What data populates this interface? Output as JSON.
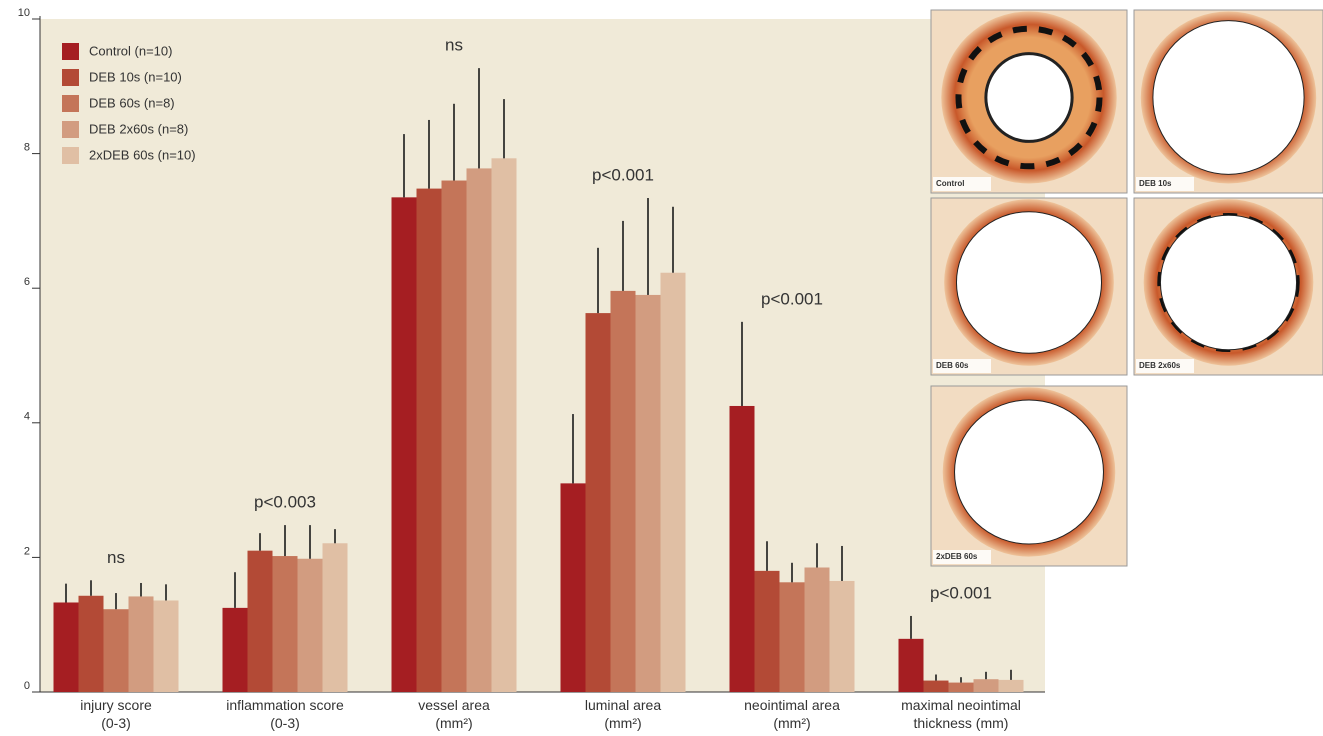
{
  "chart_data": {
    "type": "bar",
    "categories": [
      [
        "injury score",
        "(0-3)"
      ],
      [
        "inflammation score",
        "(0-3)"
      ],
      [
        "vessel area",
        "(mm²)"
      ],
      [
        "luminal area",
        "(mm²)"
      ],
      [
        "neointimal area",
        "(mm²)"
      ],
      [
        "maximal neointimal",
        "thickness (mm)"
      ]
    ],
    "group_labels": [
      "ns",
      "p<0.003",
      "ns",
      "p<0.001",
      "p<0.001",
      "p<0.001"
    ],
    "series": [
      {
        "name": "Control (n=10)",
        "color": "#a51e22",
        "values": [
          1.33,
          1.25,
          7.35,
          3.1,
          4.25,
          0.79
        ],
        "errors": [
          0.28,
          0.53,
          0.94,
          1.03,
          1.25,
          0.34
        ]
      },
      {
        "name": "DEB 10s (n=10)",
        "color": "#b34a36",
        "values": [
          1.43,
          2.1,
          7.48,
          5.63,
          1.8,
          0.17
        ],
        "errors": [
          0.23,
          0.26,
          1.02,
          0.97,
          0.44,
          0.09
        ]
      },
      {
        "name": "DEB 60s (n=8)",
        "color": "#c47559",
        "values": [
          1.23,
          2.02,
          7.6,
          5.96,
          1.63,
          0.14
        ],
        "errors": [
          0.24,
          0.46,
          1.14,
          1.04,
          0.29,
          0.08
        ]
      },
      {
        "name": "DEB 2x60s (n=8)",
        "color": "#d29c80",
        "values": [
          1.42,
          1.98,
          7.78,
          5.9,
          1.85,
          0.19
        ],
        "errors": [
          0.2,
          0.5,
          1.49,
          1.44,
          0.36,
          0.11
        ]
      },
      {
        "name": "2xDEB 60s (n=10)",
        "color": "#e0bfa4",
        "values": [
          1.36,
          2.21,
          7.93,
          6.23,
          1.65,
          0.18
        ],
        "errors": [
          0.24,
          0.21,
          0.88,
          0.98,
          0.52,
          0.15
        ]
      }
    ],
    "ylim": [
      0,
      10
    ],
    "yticks": [
      0,
      2,
      4,
      6,
      8,
      10
    ],
    "legend": "top-left"
  },
  "panels": [
    {
      "label": "Control"
    },
    {
      "label": "DEB 10s"
    },
    {
      "label": "DEB 60s"
    },
    {
      "label": "DEB 2x60s"
    },
    {
      "label": "2xDEB 60s"
    }
  ]
}
